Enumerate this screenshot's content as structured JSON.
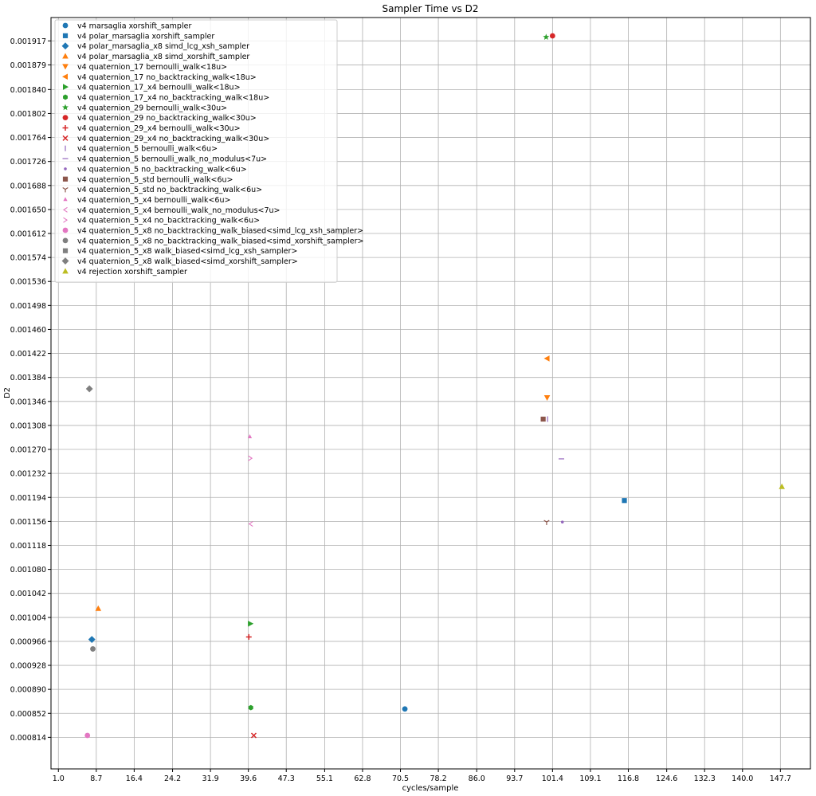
{
  "chart_data": {
    "type": "scatter",
    "title": "Sampler Time vs D2",
    "xlabel": "cycles/sample",
    "ylabel": "D2",
    "xlim": [
      -0.5,
      153.8
    ],
    "ylim": [
      0.000764,
      0.001954
    ],
    "xticks": [
      1.0,
      8.7,
      16.4,
      24.2,
      31.9,
      39.6,
      47.3,
      55.1,
      62.8,
      70.5,
      78.2,
      86.0,
      93.7,
      101.4,
      109.1,
      116.8,
      124.6,
      132.3,
      140.0,
      147.7
    ],
    "xtick_labels": [
      "1.0",
      "8.7",
      "16.4",
      "24.2",
      "31.9",
      "39.6",
      "47.3",
      "55.1",
      "62.8",
      "70.5",
      "78.2",
      "86.0",
      "93.7",
      "101.4",
      "109.1",
      "116.8",
      "124.6",
      "132.3",
      "140.0",
      "147.7"
    ],
    "yticks": [
      0.000814,
      0.000852,
      0.00089,
      0.000928,
      0.000966,
      0.001004,
      0.001042,
      0.00108,
      0.001118,
      0.001156,
      0.001194,
      0.001232,
      0.00127,
      0.001308,
      0.001346,
      0.001384,
      0.001422,
      0.00146,
      0.001498,
      0.001536,
      0.001574,
      0.001612,
      0.00165,
      0.001688,
      0.001726,
      0.001764,
      0.001802,
      0.00184,
      0.001879,
      0.001917
    ],
    "ytick_labels": [
      "0.000814",
      "0.000852",
      "0.000890",
      "0.000928",
      "0.000966",
      "0.001004",
      "0.001042",
      "0.001080",
      "0.001118",
      "0.001156",
      "0.001194",
      "0.001232",
      "0.001270",
      "0.001308",
      "0.001346",
      "0.001384",
      "0.001422",
      "0.001460",
      "0.001498",
      "0.001536",
      "0.001574",
      "0.001612",
      "0.001650",
      "0.001688",
      "0.001726",
      "0.001764",
      "0.001802",
      "0.001840",
      "0.001879",
      "0.001917"
    ],
    "grid": true,
    "legend_position": "top-left",
    "series": [
      {
        "name": "v4 marsaglia xorshift_sampler",
        "marker": "circle",
        "color": "#1f77b4",
        "points": [
          [
            71.4,
            0.000859
          ]
        ]
      },
      {
        "name": "v4 polar_marsaglia xorshift_sampler",
        "marker": "square",
        "color": "#1f77b4",
        "points": [
          [
            116.0,
            0.001189
          ]
        ]
      },
      {
        "name": "v4 polar_marsaglia_x8 simd_lcg_xsh_sampler",
        "marker": "diamond",
        "color": "#1f77b4",
        "points": [
          [
            7.8,
            0.000969
          ]
        ]
      },
      {
        "name": "v4 polar_marsaglia_x8 simd_xorshift_sampler",
        "marker": "triangle-up",
        "color": "#ff7f0e",
        "points": [
          [
            9.1,
            0.001018
          ]
        ]
      },
      {
        "name": "v4 quaternion_17 bernoulli_walk<18u>",
        "marker": "triangle-down",
        "color": "#ff7f0e",
        "points": [
          [
            100.3,
            0.001352
          ]
        ]
      },
      {
        "name": "v4 quaternion_17 no_backtracking_walk<18u>",
        "marker": "triangle-left",
        "color": "#ff7f0e",
        "points": [
          [
            100.3,
            0.001414
          ]
        ]
      },
      {
        "name": "v4 quaternion_17_x4 bernoulli_walk<18u>",
        "marker": "triangle-right",
        "color": "#2ca02c",
        "points": [
          [
            40.0,
            0.000994
          ]
        ]
      },
      {
        "name": "v4 quaternion_17_x4 no_backtracking_walk<18u>",
        "marker": "hexagon",
        "color": "#2ca02c",
        "points": [
          [
            40.1,
            0.000861
          ]
        ]
      },
      {
        "name": "v4 quaternion_29 bernoulli_walk<30u>",
        "marker": "star",
        "color": "#2ca02c",
        "points": [
          [
            100.1,
            0.001923
          ]
        ]
      },
      {
        "name": "v4 quaternion_29 no_backtracking_walk<30u>",
        "marker": "circle",
        "color": "#d62728",
        "points": [
          [
            101.4,
            0.001925
          ]
        ]
      },
      {
        "name": "v4 quaternion_29_x4 bernoulli_walk<30u>",
        "marker": "plus",
        "color": "#d62728",
        "points": [
          [
            39.7,
            0.000973
          ]
        ]
      },
      {
        "name": "v4 quaternion_29_x4 no_backtracking_walk<30u>",
        "marker": "x",
        "color": "#d62728",
        "points": [
          [
            40.7,
            0.000817
          ]
        ]
      },
      {
        "name": "v4 quaternion_5 bernoulli_walk<6u>",
        "marker": "vline",
        "color": "#9467bd",
        "points": [
          [
            100.4,
            0.001318
          ]
        ]
      },
      {
        "name": "v4 quaternion_5 bernoulli_walk_no_modulus<7u>",
        "marker": "hline",
        "color": "#9467bd",
        "points": [
          [
            103.2,
            0.001255
          ]
        ]
      },
      {
        "name": "v4 quaternion_5 no_backtracking_walk<6u>",
        "marker": "point",
        "color": "#9467bd",
        "points": [
          [
            103.4,
            0.001155
          ]
        ]
      },
      {
        "name": "v4 quaternion_5_std bernoulli_walk<6u>",
        "marker": "square",
        "color": "#8c564b",
        "points": [
          [
            99.5,
            0.001318
          ]
        ]
      },
      {
        "name": "v4 quaternion_5_std no_backtracking_walk<6u>",
        "marker": "tri-down",
        "color": "#8c564b",
        "points": [
          [
            100.2,
            0.001155
          ]
        ]
      },
      {
        "name": "v4 quaternion_5_x4 bernoulli_walk<6u>",
        "marker": "tick-up",
        "color": "#e377c2",
        "points": [
          [
            39.9,
            0.00129
          ]
        ]
      },
      {
        "name": "v4 quaternion_5_x4 bernoulli_walk_no_modulus<7u>",
        "marker": "caret-left",
        "color": "#e377c2",
        "points": [
          [
            40.1,
            0.001152
          ]
        ]
      },
      {
        "name": "v4 quaternion_5_x4 no_backtracking_walk<6u>",
        "marker": "caret-right",
        "color": "#e377c2",
        "points": [
          [
            40.0,
            0.001256
          ]
        ]
      },
      {
        "name": "v4 quaternion_5_x8 no_backtracking_walk_biased<simd_lcg_xsh_sampler>",
        "marker": "octagon",
        "color": "#e377c2",
        "points": [
          [
            6.9,
            0.000817
          ]
        ]
      },
      {
        "name": "v4 quaternion_5_x8 no_backtracking_walk_biased<simd_xorshift_sampler>",
        "marker": "octagon",
        "color": "#7f7f7f",
        "points": [
          [
            8.0,
            0.000954
          ]
        ]
      },
      {
        "name": "v4 quaternion_5_x8 walk_biased<simd_lcg_xsh_sampler>",
        "marker": "square",
        "color": "#7f7f7f",
        "points": []
      },
      {
        "name": "v4 quaternion_5_x8 walk_biased<simd_xorshift_sampler>",
        "marker": "diamond",
        "color": "#7f7f7f",
        "points": [
          [
            7.3,
            0.001366
          ]
        ]
      },
      {
        "name": "v4 rejection xorshift_sampler",
        "marker": "triangle-up",
        "color": "#bcbd22",
        "points": [
          [
            148.0,
            0.001211
          ]
        ]
      }
    ]
  }
}
